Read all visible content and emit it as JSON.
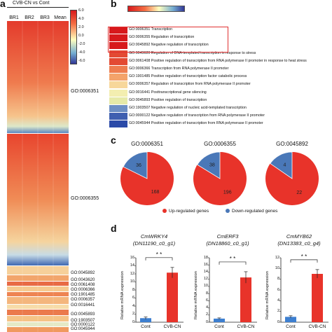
{
  "panel_a": {
    "label": "a",
    "title": "CVB-CN vs Cont",
    "columns": [
      "BR1",
      "BR2",
      "BR3",
      "Mean"
    ],
    "scale_ticks": [
      "6.0",
      "4.0",
      "2.0",
      "0.0",
      "-2.0",
      "-4.0",
      "-6.0"
    ],
    "go_labels": [
      "GO:0006351",
      "GO:0006355",
      "GO:0045892",
      "GO:0043620",
      "GO:0061408",
      "GO:0006366",
      "GO:1901485",
      "GO:0006357",
      "GO:0016441",
      "GO:0045893",
      "GO:1903507",
      "GO:0000122",
      "GO:0045944"
    ]
  },
  "panel_b": {
    "label": "b",
    "colors": {
      "high": "#d7191c",
      "mid": "#ffffbf",
      "low": "#313695"
    },
    "rows": [
      {
        "text": "GO:0006351 Transcription",
        "color": "#d7191c"
      },
      {
        "text": "GO:0006355 Regulation of transcription",
        "color": "#d7191c"
      },
      {
        "text": "GO:0045892 Negative regulation of transcription",
        "color": "#d7191c"
      },
      {
        "text": "GO:0043620 Regulation of DNA-templated transcription in response to stress",
        "color": "#e34a33"
      },
      {
        "text": "GO:0061408 Positive regulation of transcription from RNA polymerase II promoter in response to heat stress",
        "color": "#e34a33"
      },
      {
        "text": "GO:0006366 Transcription from RNA polymerase II promoter",
        "color": "#ee7d4f"
      },
      {
        "text": "GO:1901485 Positive regulation of transcription factor catabolic process",
        "color": "#f4a36a"
      },
      {
        "text": "GO:0006357 Regulation of transcription from RNA polymerase II promoter",
        "color": "#f7d79a"
      },
      {
        "text": "GO:0016441 Posttranscriptional gene silencing",
        "color": "#f3eeb0"
      },
      {
        "text": "GO:0045893 Positive regulation of transcription",
        "color": "#e6eaa8"
      },
      {
        "text": "GO:1903507 Negative regulation of nucleic acid-templated transcription",
        "color": "#6d8fc4"
      },
      {
        "text": "GO:0000122 Negative regulation of transcription from RNA polymerase II promoter",
        "color": "#3f5fb0"
      },
      {
        "text": "GO:0045944 Positive regulation of transcription from RNA polymerase II promoter",
        "color": "#2b4aa8"
      }
    ]
  },
  "panel_c": {
    "label": "c",
    "colors": {
      "up": "#e8332a",
      "down": "#4a78b8"
    },
    "legend": {
      "up": "Up-regulated genes",
      "down": "Down-regulated genes"
    },
    "chart_data": {
      "type": "pie",
      "pies": [
        {
          "title": "GO:0006351",
          "up": 168,
          "down": 36
        },
        {
          "title": "GO:0006355",
          "up": 196,
          "down": 38
        },
        {
          "title": "GO:0045892",
          "up": 22,
          "down": 4
        }
      ]
    }
  },
  "panel_d": {
    "label": "d",
    "ylabel": "Relative mRNA expression",
    "categories": [
      "Cont",
      "CVB-CN"
    ],
    "significance": "* *",
    "colors": {
      "cont": "#3d7fd0",
      "treat": "#e8332a"
    },
    "chart_data": {
      "type": "bar",
      "charts": [
        {
          "gene": "CmWRKY4",
          "id": "(DN11190_c0_g1)",
          "yticks": [
            "0",
            "2",
            "4",
            "6",
            "8",
            "10",
            "12",
            "14",
            "16"
          ],
          "ymax": 16,
          "values": [
            1.0,
            12.3
          ],
          "errors": [
            0.3,
            1.3
          ]
        },
        {
          "gene": "CmERF3",
          "id": "(DN18860_c0_g1)",
          "yticks": [
            "0",
            "2",
            "4",
            "6",
            "8",
            "10",
            "12",
            "14",
            "16",
            "18"
          ],
          "ymax": 18,
          "values": [
            1.0,
            12.5
          ],
          "errors": [
            0.2,
            1.6
          ]
        },
        {
          "gene": "CmMYB62",
          "id": "(DN13383_c0_g4)",
          "yticks": [
            "0",
            "2",
            "4",
            "6",
            "8",
            "10",
            "12"
          ],
          "ymax": 12,
          "values": [
            1.0,
            9.0
          ],
          "errors": [
            0.2,
            0.8
          ]
        }
      ]
    }
  }
}
